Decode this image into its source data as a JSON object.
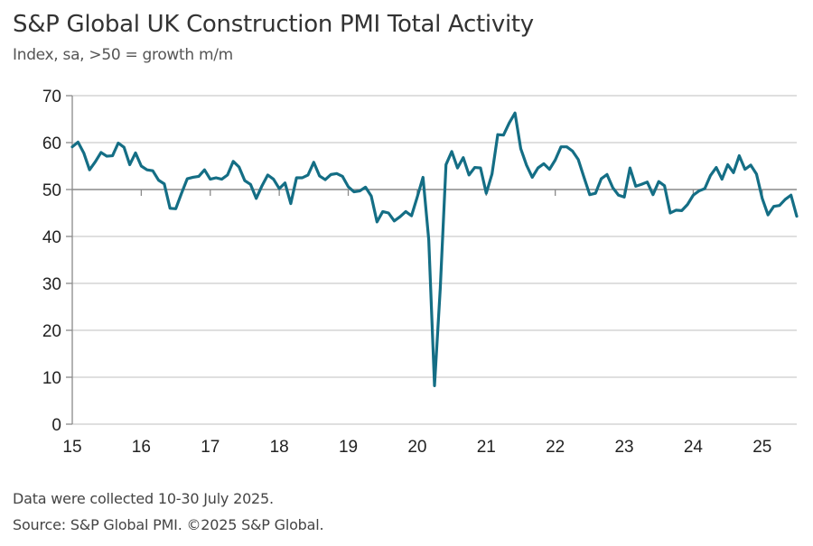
{
  "chart_data": {
    "type": "line",
    "title": "S&P Global UK Construction PMI Total Activity",
    "subtitle": "Index, sa, >50 = growth m/m",
    "xlabel": "",
    "ylabel": "",
    "ylim": [
      0,
      70
    ],
    "yticks": [
      0,
      10,
      20,
      30,
      40,
      50,
      60,
      70
    ],
    "xtick_labels": [
      "15",
      "16",
      "17",
      "18",
      "19",
      "20",
      "21",
      "22",
      "23",
      "24",
      "25"
    ],
    "x_start": "2015-01",
    "x_end": "2025-07",
    "reference_line": 50,
    "grid": true,
    "color": "#146e85",
    "series": [
      {
        "name": "UK Construction PMI Total Activity",
        "frequency": "monthly",
        "values": [
          59.1,
          60.1,
          57.8,
          54.2,
          55.9,
          57.9,
          57.1,
          57.2,
          59.9,
          59.0,
          55.3,
          57.8,
          55.0,
          54.2,
          54.0,
          52.0,
          51.2,
          46.0,
          45.9,
          49.2,
          52.3,
          52.6,
          52.8,
          54.2,
          52.2,
          52.5,
          52.2,
          53.1,
          56.0,
          54.8,
          51.9,
          51.1,
          48.1,
          50.8,
          53.1,
          52.2,
          50.2,
          51.4,
          47.0,
          52.5,
          52.5,
          53.1,
          55.8,
          52.9,
          52.1,
          53.2,
          53.4,
          52.8,
          50.6,
          49.5,
          49.7,
          50.5,
          48.6,
          43.1,
          45.3,
          45.0,
          43.3,
          44.2,
          45.3,
          44.4,
          48.4,
          52.6,
          39.3,
          8.2,
          28.9,
          55.3,
          58.1,
          54.6,
          56.8,
          53.1,
          54.7,
          54.6,
          49.2,
          53.3,
          61.7,
          61.6,
          64.2,
          66.3,
          58.7,
          55.2,
          52.6,
          54.6,
          55.5,
          54.3,
          56.3,
          59.1,
          59.1,
          58.2,
          56.4,
          52.6,
          48.9,
          49.2,
          52.3,
          53.2,
          50.4,
          48.8,
          48.4,
          54.6,
          50.7,
          51.1,
          51.6,
          48.9,
          51.7,
          50.8,
          45.0,
          45.6,
          45.5,
          46.8,
          48.8,
          49.7,
          50.2,
          53.0,
          54.7,
          52.2,
          55.3,
          53.6,
          57.2,
          54.3,
          55.2,
          53.3,
          48.1,
          44.6,
          46.4,
          46.6,
          47.9,
          48.8,
          44.3
        ]
      }
    ],
    "notes": [
      "Data were collected 10-30 July 2025.",
      "Source: S&P Global PMI. ©2025 S&P Global."
    ]
  }
}
